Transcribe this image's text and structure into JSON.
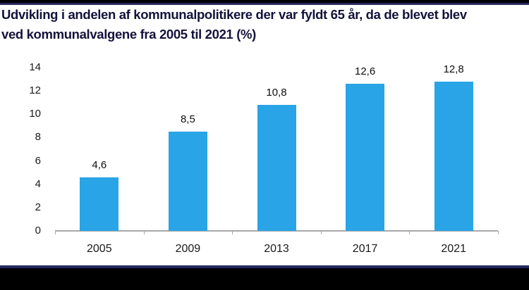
{
  "page": {
    "background": "#ffffff",
    "top_bar_color": "#000000",
    "accent_line_color": "#26295f",
    "bottom_bar_color": "#000000"
  },
  "header": {
    "title_lines": [
      "Udvikling i andelen af kommunalpolitikere der var fyldt 65 år, da de blevet blev",
      "ved kommunalvalgene fra 2005 til 2021 (%)"
    ],
    "title_color": "#14123c"
  },
  "chart_data": {
    "type": "bar",
    "title": "Udvikling i andelen af kommunalpolitikere der var fyldt 65 år, da de blevet blev ved kommunalvalgene fra 2005 til 2021 (%)",
    "categories": [
      "2005",
      "2009",
      "2013",
      "2017",
      "2021"
    ],
    "values": [
      4.6,
      8.5,
      10.8,
      12.6,
      12.8
    ],
    "value_labels": [
      "4,6",
      "8,5",
      "10,8",
      "12,6",
      "12,8"
    ],
    "xlabel": "",
    "ylabel": "",
    "ylim": [
      0,
      14
    ],
    "yticks": [
      0,
      2,
      4,
      6,
      8,
      10,
      12,
      14
    ],
    "grid": false,
    "legend": "none",
    "bar_color": "#29a4e6",
    "axis_color": "#a8a8a8",
    "tick_label_color": "#1a1a1a"
  }
}
